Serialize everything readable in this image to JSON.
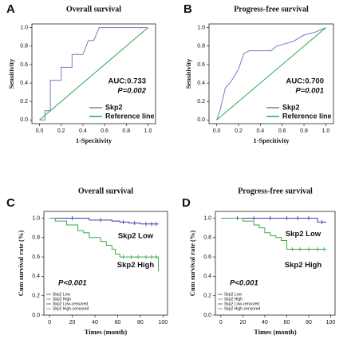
{
  "chart_data": [
    {
      "type": "line",
      "panel_label": "A",
      "title": "Overall survival",
      "x_label": "1-Specitivity",
      "y_label": "Sensitivity",
      "xlim": [
        -0.07,
        1.07
      ],
      "ylim": [
        -0.04,
        1.04
      ],
      "xticks": [
        {
          "value": 0,
          "label": "0.0"
        },
        {
          "value": 0.2,
          "label": "0.2"
        },
        {
          "value": 0.4,
          "label": "0.4"
        },
        {
          "value": 0.6,
          "label": "0.6"
        },
        {
          "value": 0.8,
          "label": "0.8"
        },
        {
          "value": 1,
          "label": "1.0"
        }
      ],
      "yticks": [
        {
          "value": 0,
          "label": "0.0"
        },
        {
          "value": 0.2,
          "label": "0.2"
        },
        {
          "value": 0.4,
          "label": "0.4"
        },
        {
          "value": 0.6,
          "label": "0.6"
        },
        {
          "value": 0.8,
          "label": "0.8"
        },
        {
          "value": 1,
          "label": "1.0"
        }
      ],
      "annotations": [
        "AUC:0.733",
        "P=0.002"
      ],
      "legend": "lower right",
      "series": [
        {
          "name": "Skp2",
          "color": "#7a7ac4",
          "x": [
            0,
            0.05,
            0.05,
            0.1,
            0.1,
            0.2,
            0.2,
            0.3,
            0.3,
            0.4,
            0.45,
            0.5,
            0.55,
            1
          ],
          "values": [
            0,
            0,
            0.1,
            0.1,
            0.43,
            0.43,
            0.57,
            0.57,
            0.71,
            0.71,
            0.86,
            0.86,
            1,
            1
          ]
        },
        {
          "name": "Reference line",
          "color": "#2fa64a",
          "x": [
            0,
            1
          ],
          "values": [
            0,
            1
          ]
        }
      ]
    },
    {
      "type": "line",
      "panel_label": "B",
      "title": "Progress-free survival",
      "x_label": "1-Specitivity",
      "y_label": "Sensitivity",
      "xlim": [
        -0.07,
        1.07
      ],
      "ylim": [
        -0.04,
        1.04
      ],
      "xticks": [
        {
          "value": 0,
          "label": "0.0"
        },
        {
          "value": 0.2,
          "label": "0.2"
        },
        {
          "value": 0.4,
          "label": "0.4"
        },
        {
          "value": 0.6,
          "label": "0.6"
        },
        {
          "value": 0.8,
          "label": "0.8"
        },
        {
          "value": 1,
          "label": "1.0"
        }
      ],
      "yticks": [
        {
          "value": 0,
          "label": "0.0"
        },
        {
          "value": 0.2,
          "label": "0.2"
        },
        {
          "value": 0.4,
          "label": "0.4"
        },
        {
          "value": 0.6,
          "label": "0.6"
        },
        {
          "value": 0.8,
          "label": "0.8"
        },
        {
          "value": 1,
          "label": "1.0"
        }
      ],
      "annotations": [
        "AUC:0.700",
        "P=0.001"
      ],
      "legend": "lower right",
      "series": [
        {
          "name": "Skp2",
          "color": "#7a7ac4",
          "x": [
            0,
            0.03,
            0.05,
            0.08,
            0.12,
            0.15,
            0.2,
            0.25,
            0.3,
            0.5,
            0.55,
            0.7,
            0.8,
            0.9,
            1
          ],
          "values": [
            0,
            0.1,
            0.2,
            0.35,
            0.4,
            0.45,
            0.55,
            0.72,
            0.75,
            0.75,
            0.8,
            0.85,
            0.92,
            0.95,
            1
          ]
        },
        {
          "name": "Reference line",
          "color": "#2fa64a",
          "x": [
            0,
            1
          ],
          "values": [
            0,
            1
          ]
        }
      ]
    },
    {
      "type": "step",
      "panel_label": "C",
      "title": "Overall survival",
      "x_label": "Times (month)",
      "y_label": "Cum survival rate (%)",
      "xlim": [
        -5,
        104
      ],
      "ylim": [
        0,
        1.07
      ],
      "xticks": [
        0,
        20,
        40,
        60,
        80,
        100
      ],
      "yticks": [
        {
          "value": 0,
          "label": "0.0"
        },
        {
          "value": 0.2,
          "label": "0.2"
        },
        {
          "value": 0.4,
          "label": "0.4"
        },
        {
          "value": 0.6,
          "label": "0.6"
        },
        {
          "value": 0.8,
          "label": "0.8"
        },
        {
          "value": 1,
          "label": "1.0"
        }
      ],
      "annotations": [
        "Skp2 Low",
        "Skp2 High",
        "P<0.001"
      ],
      "legend": "lower left",
      "series": [
        {
          "name": "Skp2 Low",
          "color": "#3a3aa8",
          "x": [
            0,
            35,
            55,
            62,
            70,
            80,
            96
          ],
          "values": [
            1,
            0.98,
            0.97,
            0.96,
            0.95,
            0.94,
            0.94
          ]
        },
        {
          "name": "Skp2 High",
          "color": "#3aa84a",
          "x": [
            0,
            5,
            15,
            25,
            30,
            35,
            45,
            50,
            55,
            58,
            62,
            95,
            96
          ],
          "values": [
            1,
            0.97,
            0.93,
            0.87,
            0.85,
            0.8,
            0.76,
            0.72,
            0.68,
            0.63,
            0.6,
            0.6,
            0.45
          ]
        },
        {
          "name": "Skp2 Low-censored",
          "color": "#3a3aa8",
          "x": [
            20,
            45,
            65,
            75,
            85,
            90,
            94
          ],
          "values": [
            1,
            0.98,
            0.96,
            0.95,
            0.94,
            0.94,
            0.94
          ]
        },
        {
          "name": "Skp2 High-censored",
          "color": "#3aa84a",
          "x": [
            65,
            72,
            78,
            85,
            90,
            94
          ],
          "values": [
            0.6,
            0.6,
            0.6,
            0.6,
            0.6,
            0.6
          ]
        }
      ]
    },
    {
      "type": "step",
      "panel_label": "D",
      "title": "Progress-free survival",
      "x_label": "Times (month)",
      "y_label": "Cum survival rate (%)",
      "xlim": [
        -5,
        104
      ],
      "ylim": [
        0,
        1.07
      ],
      "xticks": [
        0,
        20,
        40,
        60,
        80,
        100
      ],
      "yticks": [
        {
          "value": 0,
          "label": "0.0"
        },
        {
          "value": 0.2,
          "label": "0.2"
        },
        {
          "value": 0.4,
          "label": "0.4"
        },
        {
          "value": 0.6,
          "label": "0.6"
        },
        {
          "value": 0.8,
          "label": "0.8"
        },
        {
          "value": 1,
          "label": "1.0"
        }
      ],
      "annotations": [
        "Skp2 Low",
        "Skp2 High",
        "P<0.001"
      ],
      "legend": "lower left",
      "series": [
        {
          "name": "Skp2 Low",
          "color": "#3a3aa8",
          "x": [
            0,
            88,
            96
          ],
          "values": [
            1,
            0.96,
            0.96
          ]
        },
        {
          "name": "Skp2 High",
          "color": "#3aa84a",
          "x": [
            0,
            20,
            30,
            35,
            40,
            45,
            50,
            55,
            60,
            96
          ],
          "values": [
            1,
            0.97,
            0.93,
            0.9,
            0.85,
            0.82,
            0.8,
            0.77,
            0.68,
            0.68
          ]
        },
        {
          "name": "Skp2 Low-censored",
          "color": "#3a3aa8",
          "x": [
            15,
            30,
            45,
            60,
            70,
            80,
            92
          ],
          "values": [
            1,
            1,
            1,
            1,
            1,
            1,
            0.96
          ]
        },
        {
          "name": "Skp2 High-censored",
          "color": "#3aa84a",
          "x": [
            65,
            72,
            80,
            88,
            94
          ],
          "values": [
            0.68,
            0.68,
            0.68,
            0.68,
            0.68
          ]
        }
      ]
    }
  ]
}
